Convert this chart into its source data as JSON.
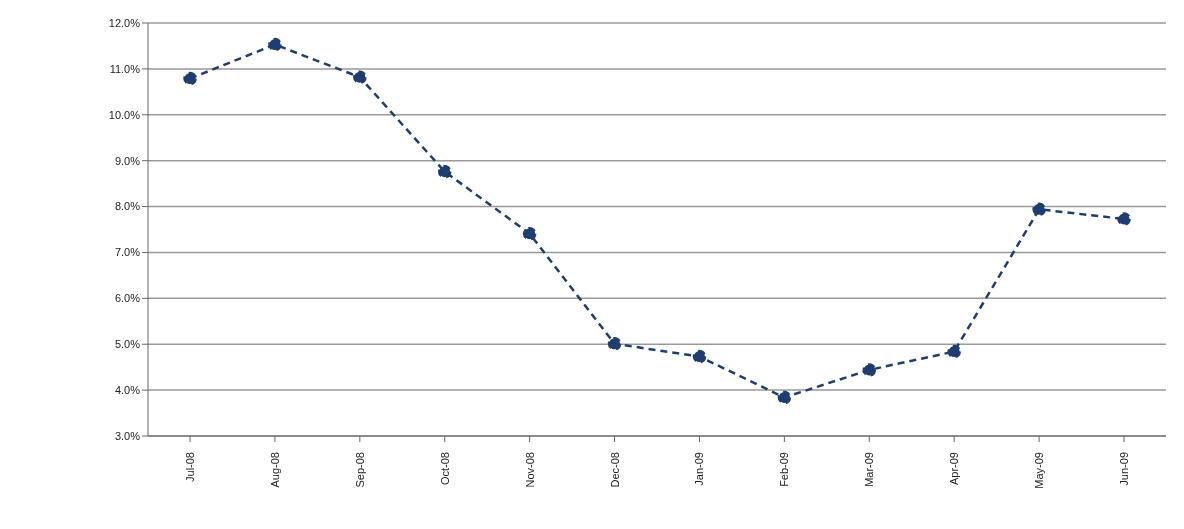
{
  "chart_data": {
    "type": "line",
    "categories": [
      "Jul-08",
      "Aug-08",
      "Sep-08",
      "Oct-08",
      "Nov-08",
      "Dec-08",
      "Jan-09",
      "Feb-09",
      "Mar-09",
      "Apr-09",
      "May-09",
      "Jun-09"
    ],
    "series": [
      {
        "color": "#1f3d6e",
        "values": [
          10.79,
          11.53,
          10.82,
          8.76,
          7.41,
          5.01,
          4.73,
          3.84,
          4.44,
          4.84,
          7.94,
          7.73
        ]
      }
    ],
    "ylim": [
      3,
      12
    ],
    "yticks": [
      {
        "value": 3,
        "label": "3.0%"
      },
      {
        "value": 4,
        "label": "4.0%"
      },
      {
        "value": 5,
        "label": "5.0%"
      },
      {
        "value": 6,
        "label": "6.0%"
      },
      {
        "value": 7,
        "label": "7.0%"
      },
      {
        "value": 8,
        "label": "8.0%"
      },
      {
        "value": 9,
        "label": "9.0%"
      },
      {
        "value": 10,
        "label": "10.0%"
      },
      {
        "value": 11,
        "label": "11.0%"
      },
      {
        "value": 12,
        "label": "12.0%"
      }
    ],
    "grid": "y",
    "marker": "circle",
    "line_style": "dashed"
  }
}
